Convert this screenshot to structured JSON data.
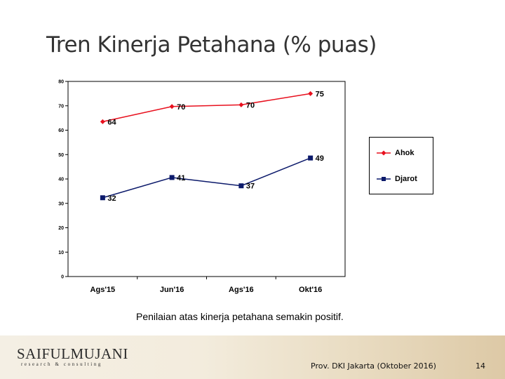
{
  "slide": {
    "title": "Tren Kinerja Petahana (% puas)",
    "caption": "Penilaian atas kinerja petahana semakin positif.",
    "footer_text": "Prov. DKI Jakarta (Oktober 2016)",
    "page_number": "14",
    "logo_main": "SAIFULMUJANI",
    "logo_sub": "research & consulting"
  },
  "chart_data": {
    "type": "line",
    "categories": [
      "Ags'15",
      "Jun'16",
      "Ags'16",
      "Okt'16"
    ],
    "series": [
      {
        "name": "Ahok",
        "values": [
          63.5,
          69.7,
          70.4,
          75
        ],
        "labels": [
          "64",
          "70",
          "70",
          "75"
        ],
        "color": "#e8101e",
        "marker": "diamond"
      },
      {
        "name": "Djarot",
        "values": [
          32.3,
          40.6,
          37.2,
          48.6
        ],
        "labels": [
          "32",
          "41",
          "37",
          "49"
        ],
        "color": "#0c1a6b",
        "marker": "square"
      }
    ],
    "ylim": [
      0,
      80
    ],
    "yticks": [
      0,
      10,
      20,
      30,
      40,
      50,
      60,
      70,
      80
    ],
    "xlabel": "",
    "ylabel": "",
    "grid": false,
    "legend_position": "right"
  }
}
